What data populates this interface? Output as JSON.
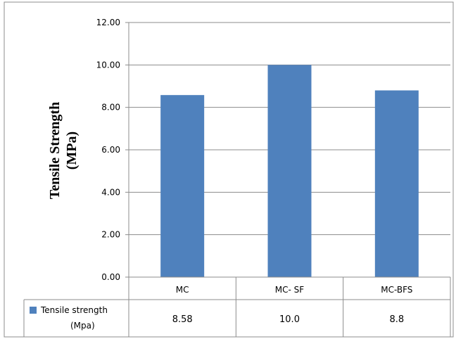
{
  "chart_data": {
    "type": "bar",
    "categories": [
      "MC",
      "MC- SF",
      "MC-BFS"
    ],
    "series": [
      {
        "name": "Tensile strength (Mpa)",
        "name_lines": [
          "Tensile strength",
          "(Mpa)"
        ],
        "values": [
          8.58,
          10.0,
          8.8
        ],
        "value_labels": [
          "8.58",
          "10.0",
          "8.8"
        ],
        "color": "#4f81bd"
      }
    ],
    "title": "",
    "xlabel": "",
    "ylabel": "Tensile  Strength (MPa)",
    "ylabel_lines": [
      "Tensile  Strength",
      "(MPa)"
    ],
    "ylim": [
      0,
      12
    ],
    "yticks": [
      "0.00",
      "2.00",
      "4.00",
      "6.00",
      "8.00",
      "10.00",
      "12.00"
    ],
    "grid": true,
    "legend": "data-table-left",
    "has_data_table": true
  }
}
